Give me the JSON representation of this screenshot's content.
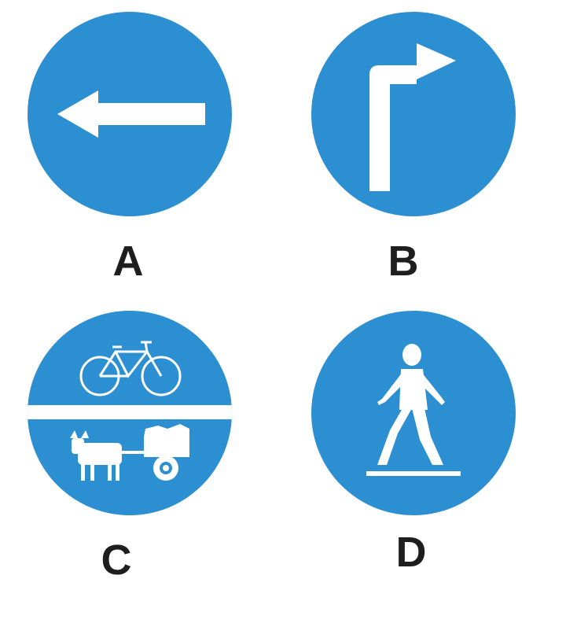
{
  "colors": {
    "sign_blue": "#2c8fd1",
    "symbol_white": "#ffffff",
    "label_text": "#1e1e1e"
  },
  "options": [
    {
      "letter": "A",
      "icon": "left-arrow-icon"
    },
    {
      "letter": "B",
      "icon": "turn-right-arrow-icon"
    },
    {
      "letter": "C",
      "icon": "bicycle-and-oxcart-icon"
    },
    {
      "letter": "D",
      "icon": "pedestrian-icon"
    }
  ]
}
